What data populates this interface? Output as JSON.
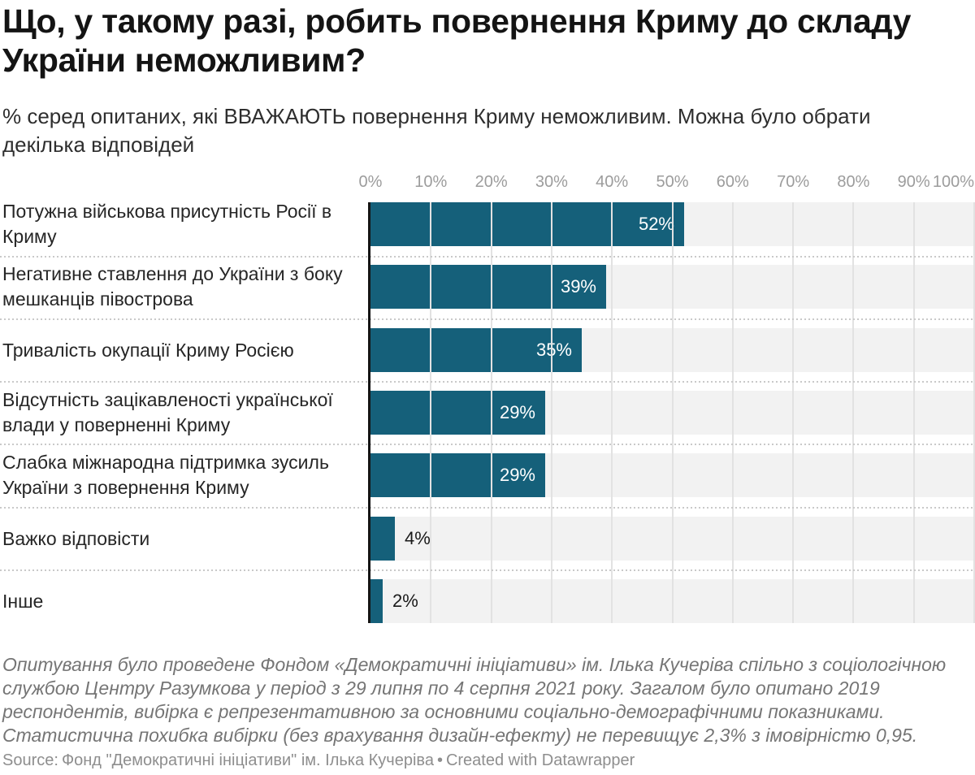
{
  "chart_data": {
    "type": "bar",
    "orientation": "horizontal",
    "title": "Що, у такому разі, робить повернення Криму до складу України неможливим?",
    "subtitle": "% серед опитаних, які ВВАЖАЮТЬ повернення Криму неможливим. Можна було обрати декілька відповідей",
    "categories": [
      "Потужна військова присутність Росії в Криму",
      "Негативне ставлення до України з боку мешканців півострова",
      "Тривалість окупації Криму Росією",
      "Відсутність зацікавленості української влади у поверненні Криму",
      "Слабка міжнародна підтримка зусиль України з повернення Криму",
      "Важко відповісти",
      "Інше"
    ],
    "values": [
      52,
      39,
      35,
      29,
      29,
      4,
      2
    ],
    "value_labels": [
      "52%",
      "39%",
      "35%",
      "29%",
      "29%",
      "4%",
      "2%"
    ],
    "axis_ticks": [
      "0%",
      "10%",
      "20%",
      "30%",
      "40%",
      "50%",
      "60%",
      "70%",
      "80%",
      "90%",
      "100%"
    ],
    "xlim": [
      0,
      100
    ],
    "grid": true,
    "legend": "none",
    "bar_color": "#15607a",
    "track_color": "#f2f2f2",
    "gridline_color": "#e2e2e2",
    "value_inside_color": "#ffffff",
    "value_outside_color": "#1a1a1a"
  },
  "footer": {
    "notes": "Опитування було проведене Фондом «Демократичні ініціативи» ім. Ілька Кучеріва спільно з соціологічною службою Центру Разумкова у період з 29 липня по 4 серпня 2021 року. Загалом було опитано 2019 респондентів, вибірка є репрезентативною за основними соціально-демографічними показниками. Статистична похибка вибірки (без врахування дизайн-ефекту) не перевищує 2,3% з імовірністю 0,95.",
    "source_label": "Source:",
    "source_value": "Фонд \"Демократичні ініціативи\" ім. Ілька Кучеріва",
    "separator": "•",
    "created_with": "Created with Datawrapper"
  }
}
